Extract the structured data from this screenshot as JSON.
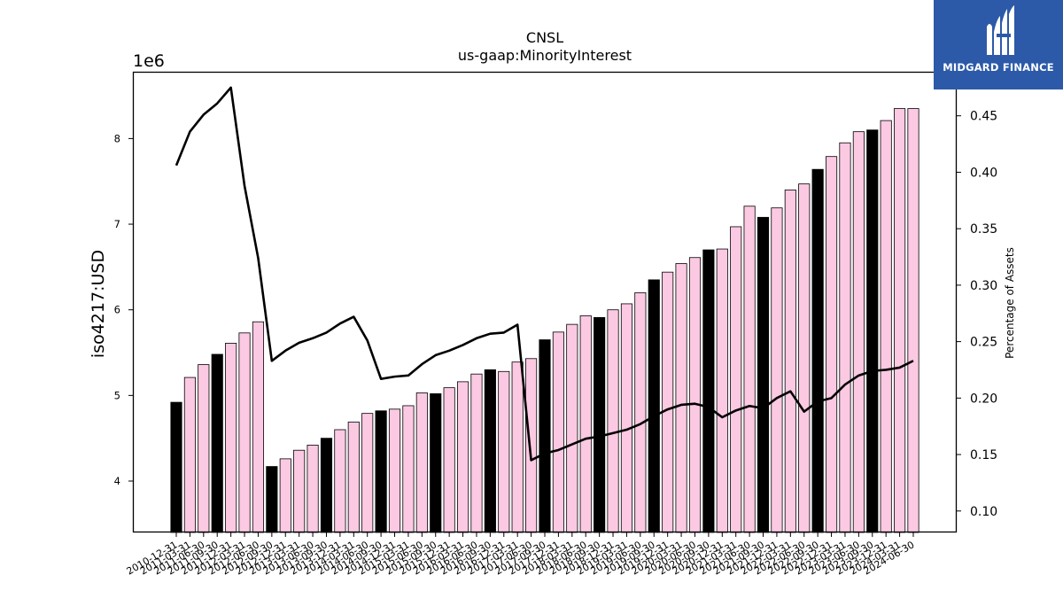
{
  "header": {
    "title": "CNSL",
    "subtitle": "us-gaap:MinorityInterest"
  },
  "brand": {
    "name": "MIDGARD FINANCE",
    "logo_icon": "midgard-logo-icon",
    "color": "#2c5aa8"
  },
  "chart_data": {
    "type": "bar",
    "title": "CNSL",
    "subtitle": "us-gaap:MinorityInterest",
    "ylabel": "iso4217:USD",
    "y2label": "Percentage of Assets",
    "yscale_label": "1e6",
    "ylim": [
      3.4,
      8.78
    ],
    "y2lim": [
      0.081,
      0.489
    ],
    "yticks": [
      4,
      5,
      6,
      7,
      8
    ],
    "y2ticks": [
      0.1,
      0.15,
      0.2,
      0.25,
      0.3,
      0.35,
      0.4,
      0.45
    ],
    "grid": false,
    "colors": {
      "annual_bar": "#000000",
      "quarter_bar": "#fcc9e3",
      "line": "#000000"
    },
    "categories": [
      "2010-12-31",
      "2011-03-31",
      "2011-06-30",
      "2011-09-30",
      "2011-12-31",
      "2012-03-31",
      "2012-06-30",
      "2012-09-30",
      "2012-12-31",
      "2013-03-31",
      "2013-06-30",
      "2013-09-30",
      "2013-12-31",
      "2014-03-31",
      "2014-06-30",
      "2014-09-30",
      "2014-12-31",
      "2015-03-31",
      "2015-06-30",
      "2015-09-30",
      "2015-12-31",
      "2016-03-31",
      "2016-06-30",
      "2016-09-30",
      "2016-12-31",
      "2017-03-31",
      "2017-06-30",
      "2017-09-30",
      "2017-12-31",
      "2018-03-31",
      "2018-06-30",
      "2018-09-30",
      "2018-12-31",
      "2019-03-31",
      "2019-06-30",
      "2019-09-30",
      "2019-12-31",
      "2020-03-31",
      "2020-06-30",
      "2020-09-30",
      "2020-12-31",
      "2021-03-31",
      "2021-06-30",
      "2021-09-30",
      "2021-12-31",
      "2022-03-31",
      "2022-06-30",
      "2022-09-30",
      "2022-12-31",
      "2023-03-31",
      "2023-06-30",
      "2023-09-30",
      "2023-12-31",
      "2024-03-31",
      "2024-06-30"
    ],
    "series": [
      {
        "kind": "bar",
        "values": [
          4.92,
          5.21,
          5.36,
          5.48,
          5.61,
          5.73,
          5.86,
          4.17,
          4.26,
          4.36,
          4.42,
          4.5,
          4.6,
          4.69,
          4.79,
          4.82,
          4.84,
          4.88,
          5.03,
          5.02,
          5.09,
          5.16,
          5.25,
          5.3,
          5.28,
          5.39,
          5.43,
          5.65,
          5.74,
          5.83,
          5.93,
          5.91,
          6.0,
          6.07,
          6.2,
          6.35,
          6.44,
          6.54,
          6.61,
          6.7,
          6.71,
          6.97,
          7.21,
          7.08,
          7.19,
          7.4,
          7.47,
          7.64,
          7.79,
          7.95,
          8.08,
          8.1,
          8.21,
          8.35,
          8.35
        ],
        "annual": [
          true,
          false,
          false,
          true,
          false,
          false,
          false,
          true,
          false,
          false,
          false,
          true,
          false,
          false,
          false,
          true,
          false,
          false,
          false,
          true,
          false,
          false,
          false,
          true,
          false,
          false,
          false,
          true,
          false,
          false,
          false,
          true,
          false,
          false,
          false,
          true,
          false,
          false,
          false,
          true,
          false,
          false,
          false,
          true,
          false,
          false,
          false,
          true,
          false,
          false,
          false,
          true,
          false,
          false,
          false
        ]
      },
      {
        "kind": "line",
        "axis": "right",
        "values": [
          0.406,
          0.436,
          0.451,
          0.461,
          0.475,
          0.388,
          0.324,
          0.233,
          0.242,
          0.249,
          0.253,
          0.258,
          0.266,
          0.272,
          0.251,
          0.217,
          0.219,
          0.22,
          0.23,
          0.238,
          0.242,
          0.247,
          0.253,
          0.257,
          0.258,
          0.265,
          0.145,
          0.151,
          0.154,
          0.159,
          0.164,
          0.166,
          0.169,
          0.172,
          0.177,
          0.184,
          0.19,
          0.194,
          0.195,
          0.192,
          0.183,
          0.189,
          0.193,
          0.191,
          0.2,
          0.206,
          0.188,
          0.197,
          0.2,
          0.212,
          0.22,
          0.224,
          0.225,
          0.227,
          0.233
        ]
      }
    ]
  }
}
